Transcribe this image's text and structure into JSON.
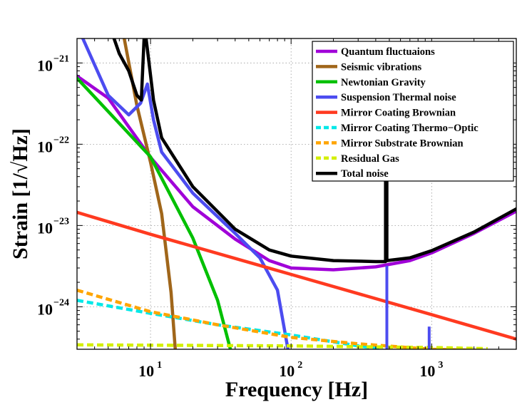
{
  "chart_data": {
    "type": "line",
    "xlabel": "Frequency [Hz]",
    "ylabel": "Strain [1/√Hz]",
    "xscale": "log",
    "yscale": "log",
    "xlim": [
      3,
      4000
    ],
    "ylim": [
      3e-25,
      2e-21
    ],
    "grid": true,
    "legend_position": "top-right",
    "x_ticks": [
      {
        "base": "10",
        "exp": "1",
        "value": 10
      },
      {
        "base": "10",
        "exp": "2",
        "value": 100
      },
      {
        "base": "10",
        "exp": "3",
        "value": 1000
      }
    ],
    "y_ticks": [
      {
        "base": "10",
        "exp": "−21",
        "value": 1e-21
      },
      {
        "base": "10",
        "exp": "−22",
        "value": 1e-22
      },
      {
        "base": "10",
        "exp": "−23",
        "value": 1e-23
      },
      {
        "base": "10",
        "exp": "−24",
        "value": 1e-24
      }
    ],
    "series": [
      {
        "name": "Quantum fluctuaions",
        "color": "#a000d8",
        "dash": false,
        "points": [
          [
            3,
            6.9e-22
          ],
          [
            5,
            3.7e-22
          ],
          [
            10,
            6.9e-23
          ],
          [
            20,
            1.7e-23
          ],
          [
            40,
            6.8e-24
          ],
          [
            70,
            3.7e-24
          ],
          [
            100,
            3e-24
          ],
          [
            200,
            2.85e-24
          ],
          [
            400,
            3.1e-24
          ],
          [
            700,
            3.7e-24
          ],
          [
            1000,
            4.6e-24
          ],
          [
            2000,
            8e-24
          ],
          [
            4000,
            1.5e-23
          ]
        ]
      },
      {
        "name": "Seismic vibrations",
        "color": "#a0661a",
        "dash": false,
        "points": [
          [
            6.5,
            2e-21
          ],
          [
            8,
            3e-22
          ],
          [
            10,
            6e-23
          ],
          [
            12,
            1.4e-23
          ],
          [
            14,
            1.5e-24
          ],
          [
            15,
            3e-25
          ]
        ]
      },
      {
        "name": "Newtonian Gravity",
        "color": "#00c000",
        "dash": false,
        "points": [
          [
            3,
            6.5e-22
          ],
          [
            10,
            7e-23
          ],
          [
            20,
            7e-24
          ],
          [
            30,
            1.2e-24
          ],
          [
            37,
            3e-25
          ]
        ]
      },
      {
        "name": "Suspension Thermal noise",
        "color": "#4c4cf0",
        "dash": false,
        "points": [
          [
            3.3,
            2e-21
          ],
          [
            5,
            4e-22
          ],
          [
            7,
            2.3e-22
          ],
          [
            8.5,
            3.2e-22
          ],
          [
            9.5,
            5.5e-22
          ],
          [
            10.5,
            2e-22
          ],
          [
            12,
            8e-23
          ],
          [
            20,
            2.5e-23
          ],
          [
            40,
            8e-24
          ],
          [
            60,
            4e-24
          ],
          [
            80,
            1.6e-24
          ],
          [
            95,
            3e-25
          ]
        ]
      },
      {
        "name": "Mirror Coating Brownian",
        "color": "#ff3a20",
        "dash": false,
        "points": [
          [
            3,
            1.45e-23
          ],
          [
            10,
            7.8e-24
          ],
          [
            100,
            2.5e-24
          ],
          [
            1000,
            8e-25
          ],
          [
            4000,
            4e-25
          ]
        ]
      },
      {
        "name": "Mirror Coating Thermo−Optic",
        "color": "#00e8e8",
        "dash": true,
        "points": [
          [
            3,
            1.2e-24
          ],
          [
            10,
            8.3e-25
          ],
          [
            30,
            6e-25
          ],
          [
            100,
            4.5e-25
          ],
          [
            300,
            3.3e-25
          ],
          [
            450,
            3e-25
          ]
        ]
      },
      {
        "name": "Mirror Substrate Brownian",
        "color": "#ffa500",
        "dash": true,
        "points": [
          [
            3,
            1.6e-24
          ],
          [
            10,
            8.7e-25
          ],
          [
            30,
            6e-25
          ],
          [
            100,
            4.2e-25
          ],
          [
            300,
            3.5e-25
          ],
          [
            1000,
            3e-25
          ],
          [
            2500,
            2.9e-25
          ]
        ]
      },
      {
        "name": "Residual Gas",
        "color": "#d4ef00",
        "dash": true,
        "points": [
          [
            3,
            3.4e-25
          ],
          [
            100,
            3.3e-25
          ],
          [
            1000,
            3.15e-25
          ],
          [
            2500,
            3.05e-25
          ]
        ]
      },
      {
        "name": "Total noise",
        "color": "#000000",
        "dash": false,
        "points": [
          [
            5.5,
            2e-21
          ],
          [
            6,
            1.3e-21
          ],
          [
            7,
            8e-22
          ],
          [
            8,
            4e-22
          ],
          [
            8.6,
            3.5e-22
          ],
          [
            9,
            2e-21
          ],
          [
            9.3,
            2e-21
          ],
          [
            10.5,
            3.5e-22
          ],
          [
            12,
            1.2e-22
          ],
          [
            20,
            3e-23
          ],
          [
            40,
            9e-24
          ],
          [
            70,
            5e-24
          ],
          [
            100,
            4.2e-24
          ],
          [
            200,
            3.7e-24
          ],
          [
            400,
            3.6e-24
          ],
          [
            470,
            3.6e-24
          ],
          [
            470,
            2.3e-22
          ],
          [
            480,
            2.3e-22
          ],
          [
            480,
            3.7e-24
          ],
          [
            700,
            4e-24
          ],
          [
            1000,
            4.9e-24
          ],
          [
            2000,
            8.3e-24
          ],
          [
            4000,
            1.6e-23
          ]
        ]
      }
    ],
    "annotations": [
      {
        "name": "Suspension violin peak 480Hz",
        "color": "#4c4cf0",
        "x": 480,
        "y_from": 3e-25,
        "y_to": 3.2e-24
      },
      {
        "name": "Suspension violin peak 960Hz",
        "color": "#4c4cf0",
        "x": 960,
        "y_from": 3e-25,
        "y_to": 5.7e-25
      }
    ]
  }
}
